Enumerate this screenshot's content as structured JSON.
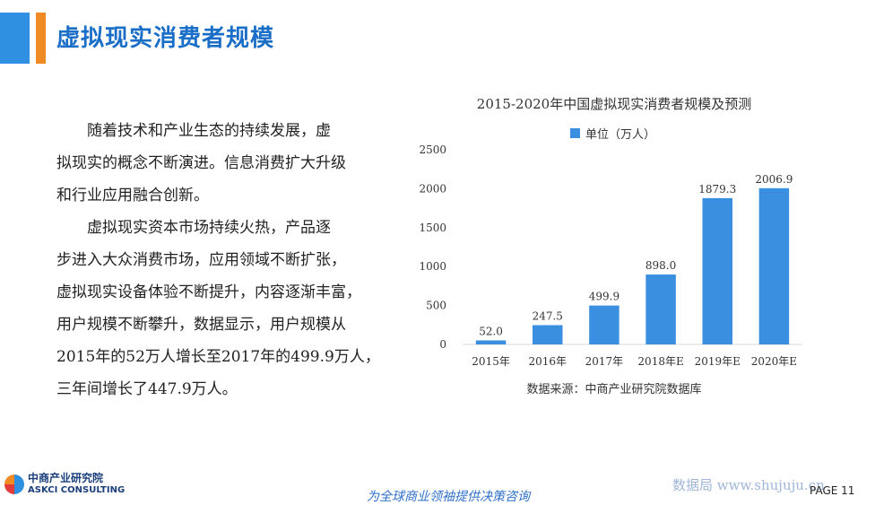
{
  "page": {
    "title": "虚拟现实消费者规模",
    "paragraphs": [
      [
        "随着技术和产业生态的持续发展，虚",
        "拟现实的概念不断演进。信息消费扩大升级",
        "和行业应用融合创新。"
      ],
      [
        "虚拟现实资本市场持续火热，产品逐",
        "步进入大众消费市场，应用领域不断扩张，",
        "虚拟现实设备体验不断提升，内容逐渐丰富，",
        "用户规模不断攀升，数据显示，用户规模从",
        "2015年的52万人增长至2017年的499.9万人，",
        "三年间增长了447.9万人。"
      ]
    ],
    "logo_cn": "中商产业研究院",
    "logo_en": "ASKCI CONSULTING",
    "slogan": "为全球商业领袖提供决策咨询",
    "watermark": "数据局  www.shujuju.cn",
    "page_number": "PAGE 11"
  },
  "chart_data": {
    "type": "bar",
    "title": "2015-2020年中国虚拟现实消费者规模及预测",
    "legend": "单位（万人）",
    "legend_position": "top",
    "categories": [
      "2015年",
      "2016年",
      "2017年",
      "2018年E",
      "2019年E",
      "2020年E"
    ],
    "values": [
      52.0,
      247.5,
      499.9,
      898.0,
      1879.3,
      2006.9
    ],
    "value_labels": [
      "52.0",
      "247.5",
      "499.9",
      "898.0",
      "1879.3",
      "2006.9"
    ],
    "yticks": [
      0,
      500,
      1000,
      1500,
      2000,
      2500
    ],
    "ylim": [
      0,
      2500
    ],
    "grid": false,
    "bar_color": "#3b8fe0",
    "source": "数据来源：中商产业研究院数据库"
  }
}
